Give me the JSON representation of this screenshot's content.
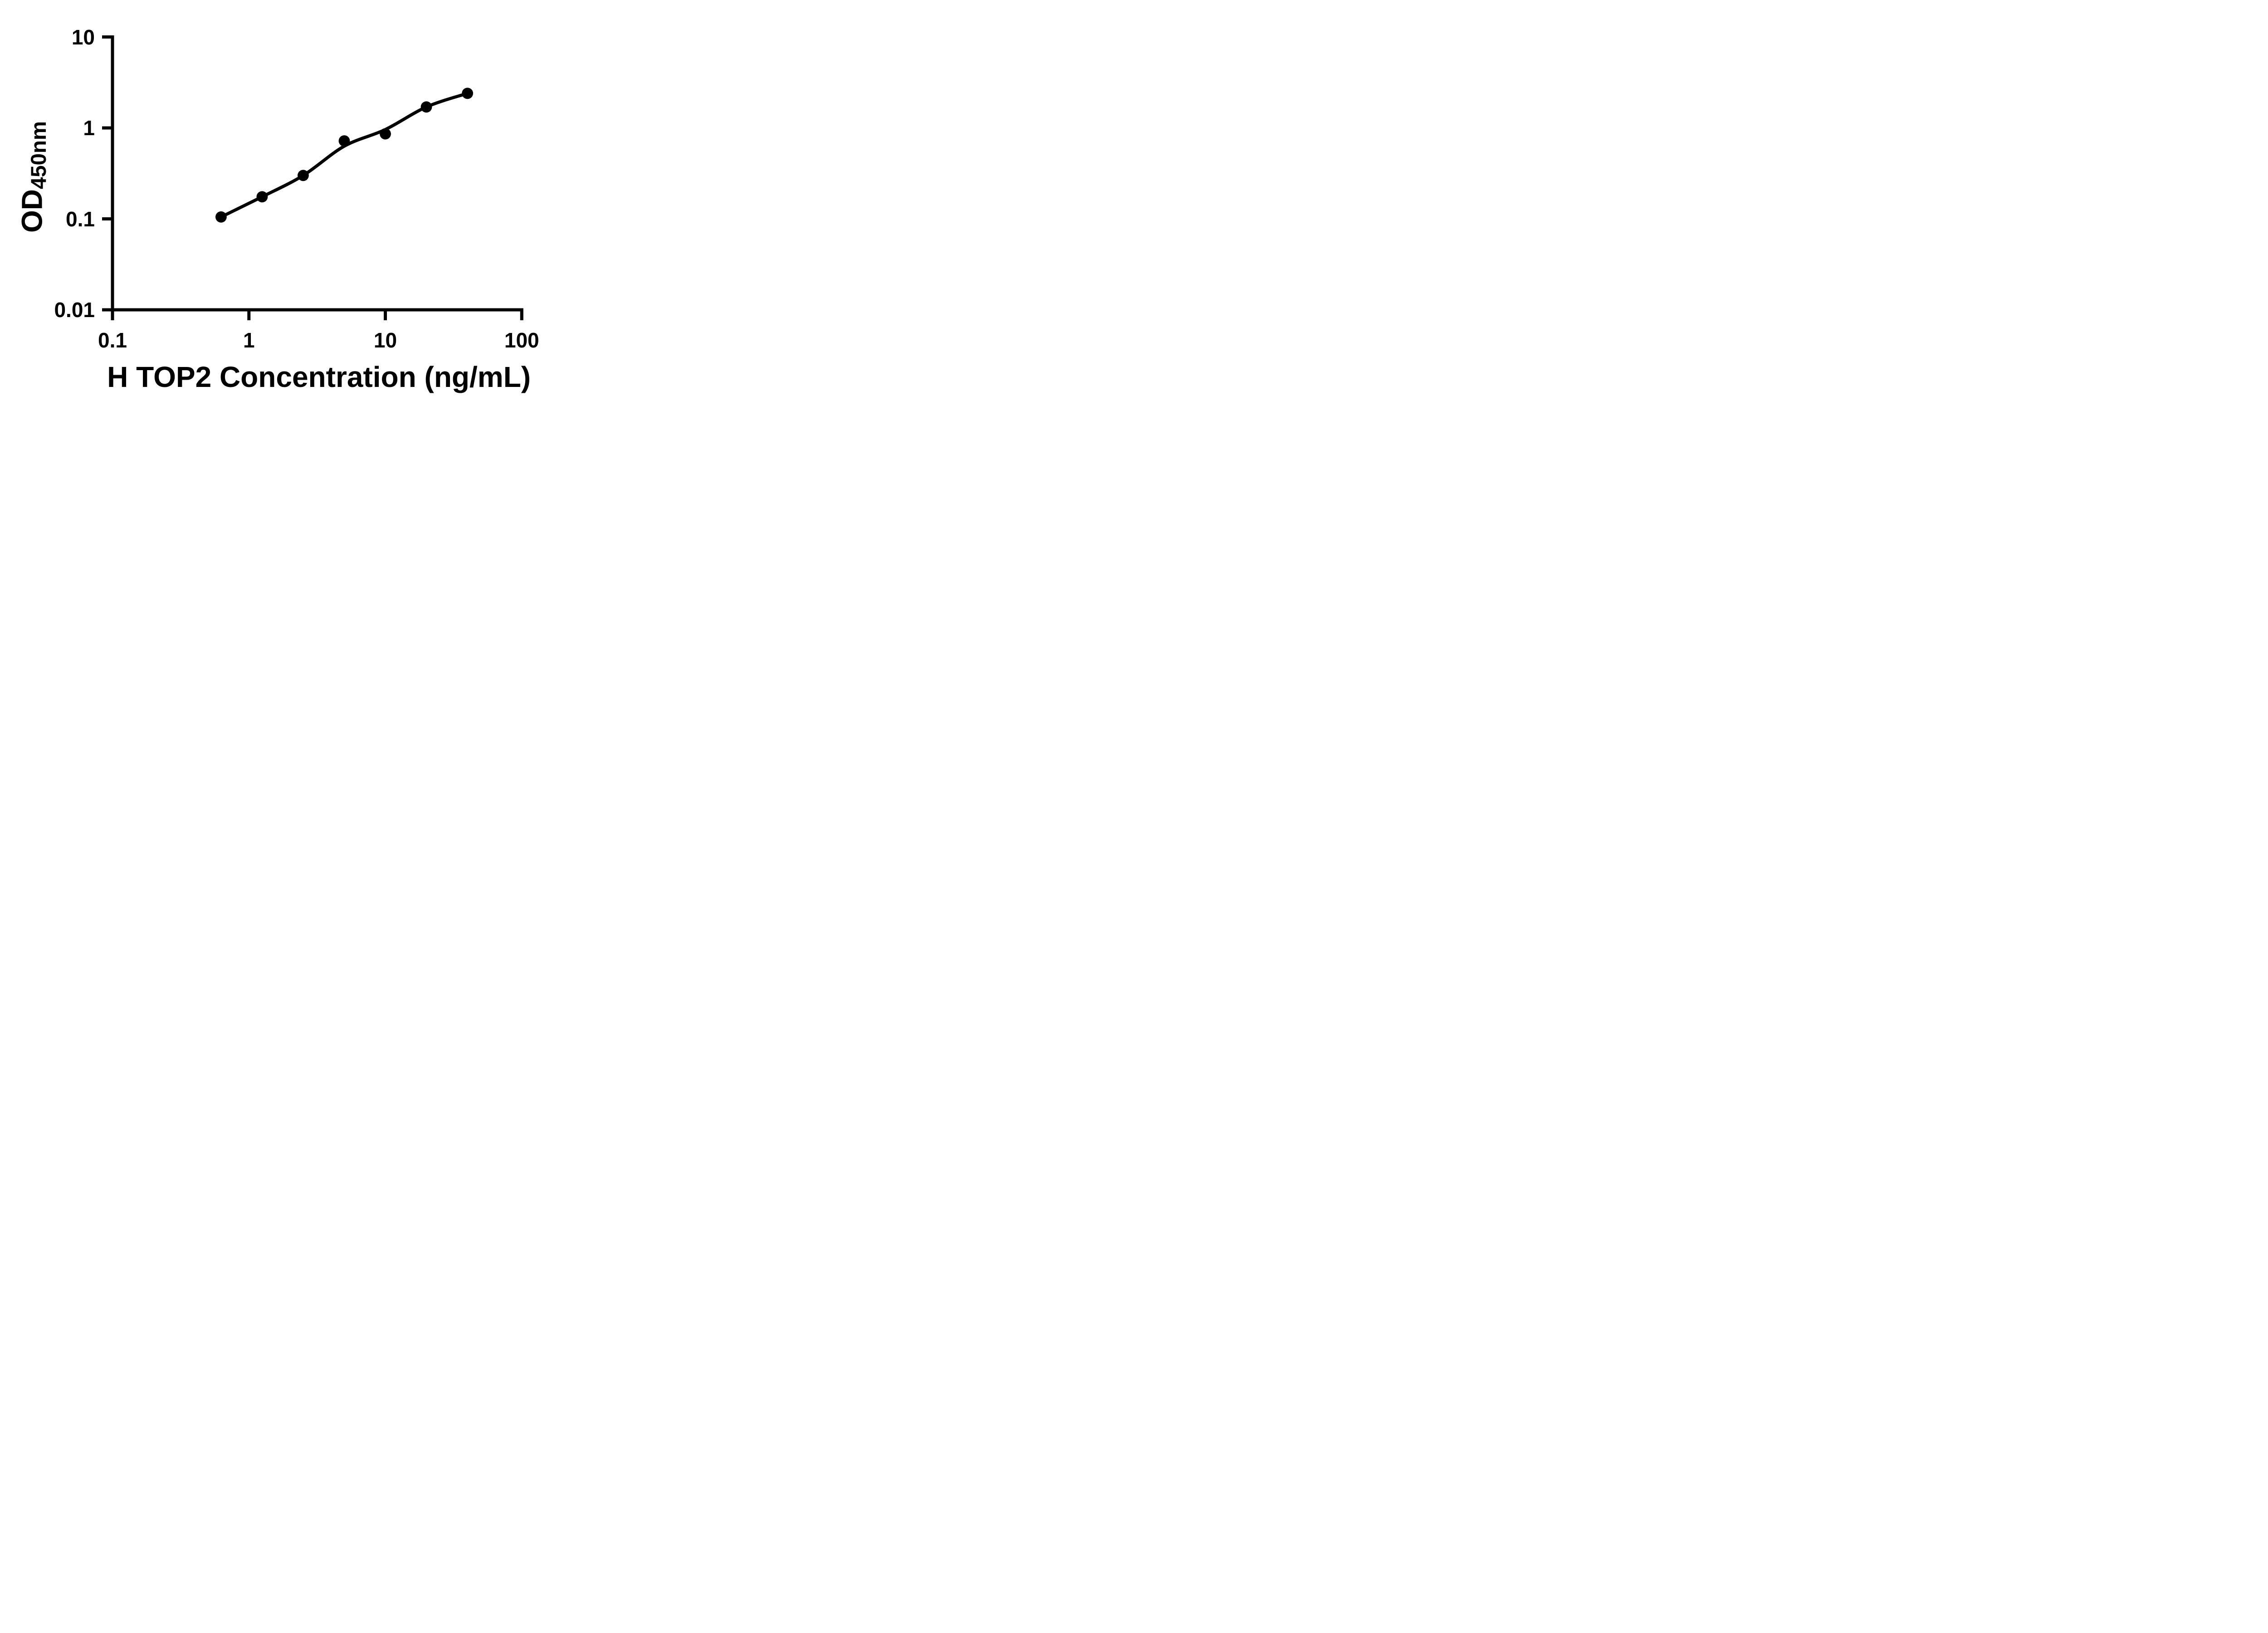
{
  "chart_data": {
    "type": "scatter",
    "title": "",
    "xlabel": "H TOP2 Concentration (ng/mL)",
    "ylabel_main": "OD",
    "ylabel_sub": "450nm",
    "xscale": "log",
    "yscale": "log",
    "xlim": [
      0.1,
      100
    ],
    "ylim": [
      0.01,
      10
    ],
    "x_ticks": [
      "0.1",
      "1",
      "10",
      "100"
    ],
    "y_ticks": [
      "10",
      "1",
      "0.1",
      "0.01"
    ],
    "x": [
      0.625,
      1.25,
      2.5,
      5,
      10,
      20,
      40
    ],
    "y": [
      0.105,
      0.175,
      0.3,
      0.72,
      0.86,
      1.7,
      2.4
    ],
    "curve_y": [
      0.105,
      0.175,
      0.3,
      0.63,
      0.96,
      1.7,
      2.4
    ],
    "grid": false,
    "legend": false,
    "marker_color": "#000000",
    "line_color": "#000000",
    "background_color": "#ffffff"
  }
}
